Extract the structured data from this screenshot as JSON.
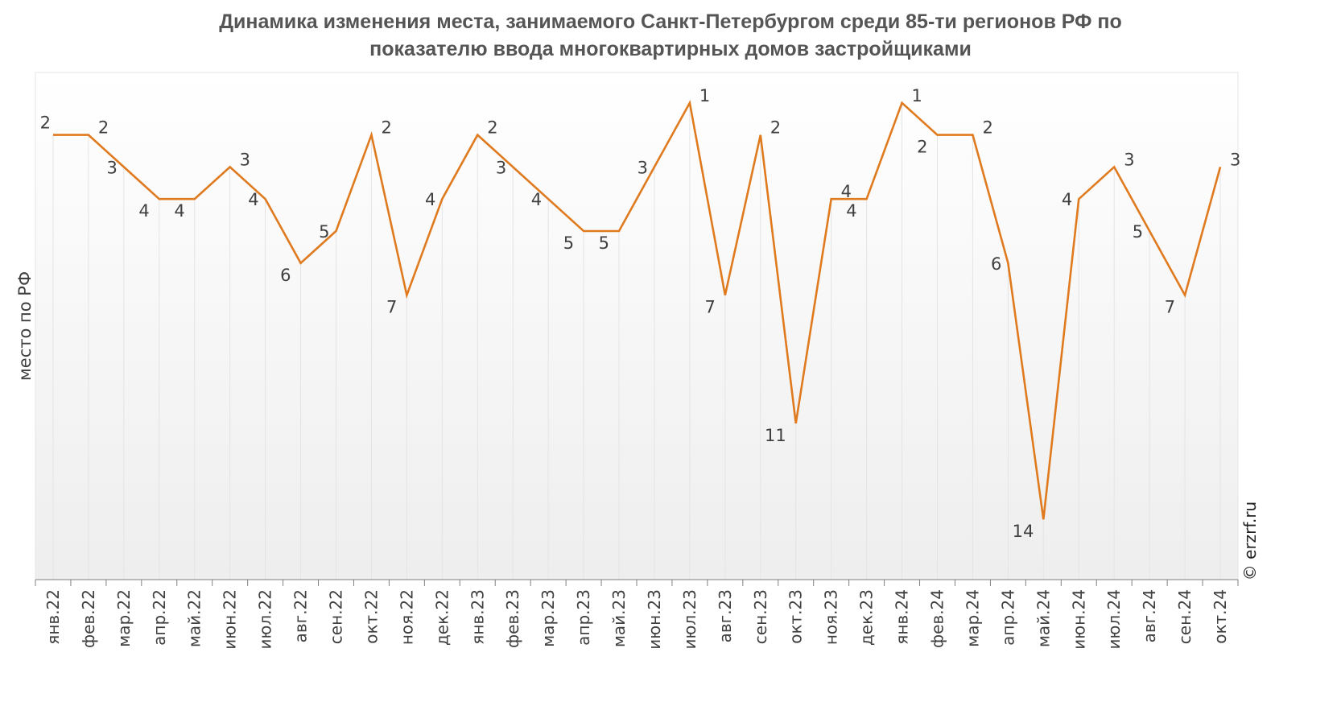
{
  "chart_data": {
    "type": "line",
    "title_lines": [
      "Динамика изменения места, занимаемого Санкт-Петербургом среди 85-ти регионов РФ по",
      "показателю ввода многоквартирных домов застройщиками"
    ],
    "xlabel": "",
    "ylabel": "место по РФ",
    "y_reversed": true,
    "ylim": [
      0,
      15
    ],
    "grid": "vertical",
    "legend": "none",
    "line_color": "#E07A1F",
    "categories": [
      "янв.22",
      "фев.22",
      "мар.22",
      "апр.22",
      "май.22",
      "июн.22",
      "июл.22",
      "авг.22",
      "сен.22",
      "окт.22",
      "ноя.22",
      "дек.22",
      "янв.23",
      "фев.23",
      "мар.23",
      "апр.23",
      "май.23",
      "июн.23",
      "июл.23",
      "авг.23",
      "сен.23",
      "окт.23",
      "ноя.23",
      "дек.23",
      "янв.24",
      "фев.24",
      "мар.24",
      "апр.24",
      "май.24",
      "июн.24",
      "июл.24",
      "авг.24",
      "сен.24",
      "окт.24"
    ],
    "values": [
      2,
      2,
      3,
      4,
      4,
      3,
      4,
      6,
      5,
      2,
      7,
      4,
      2,
      3,
      4,
      5,
      5,
      3,
      1,
      7,
      2,
      11,
      4,
      4,
      1,
      2,
      2,
      6,
      14,
      4,
      3,
      5,
      7,
      3
    ],
    "value_labels": [
      "2",
      "2",
      "3",
      "4",
      "4",
      "3",
      "4",
      "6",
      "5",
      "2",
      "7",
      "4",
      "2",
      "3",
      "4",
      "5",
      "5",
      "3",
      "1",
      "7",
      "2",
      "11",
      "4",
      "4",
      "1",
      "2",
      "2",
      "6",
      "14",
      "4",
      "3",
      "5",
      "7",
      "3"
    ]
  },
  "watermark": "© erzrf.ru"
}
